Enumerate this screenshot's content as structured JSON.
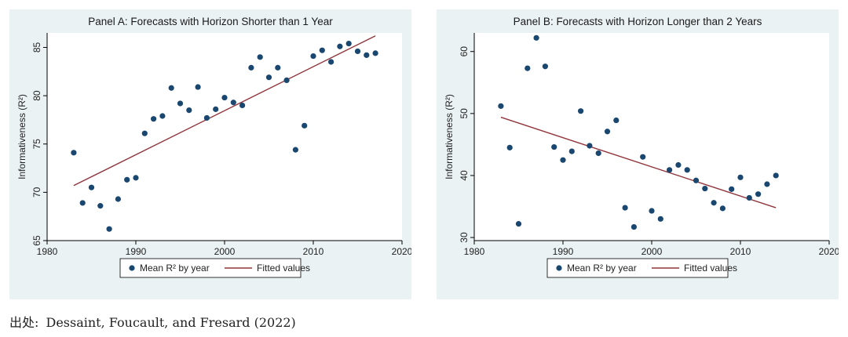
{
  "source": {
    "label": "出处:",
    "text": "Dessaint, Foucault, and Fresard (2022)"
  },
  "colors": {
    "background": "#eaf2f3",
    "points": "#1a476f",
    "line": "#90353b",
    "axis": "#000000"
  },
  "chart_data": [
    {
      "type": "scatter",
      "title": "Panel A: Forecasts with Horizon Shorter than 1 Year",
      "xlabel": "",
      "ylabel": "Informativeness (R²)",
      "xlim": [
        1980,
        2020
      ],
      "ylim": [
        65,
        86.5
      ],
      "xticks": [
        1980,
        1990,
        2000,
        2010,
        2020
      ],
      "yticks": [
        65,
        70,
        75,
        80,
        85
      ],
      "grid": false,
      "legend": {
        "position": "bottom",
        "entries": [
          "Mean R² by year",
          "Fitted values"
        ]
      },
      "series": [
        {
          "name": "Mean R² by year",
          "kind": "scatter",
          "x": [
            1983,
            1984,
            1985,
            1986,
            1987,
            1988,
            1989,
            1990,
            1991,
            1992,
            1993,
            1994,
            1995,
            1996,
            1997,
            1998,
            1999,
            2000,
            2001,
            2002,
            2003,
            2004,
            2005,
            2006,
            2007,
            2008,
            2009,
            2010,
            2011,
            2012,
            2013,
            2014,
            2015,
            2016,
            2017
          ],
          "y": [
            74.1,
            68.9,
            70.5,
            68.6,
            66.2,
            69.3,
            71.3,
            71.5,
            76.1,
            77.6,
            77.9,
            80.8,
            79.2,
            78.5,
            80.9,
            77.7,
            78.6,
            79.8,
            79.3,
            79.0,
            82.9,
            84.0,
            81.9,
            82.9,
            81.6,
            74.4,
            76.9,
            84.1,
            84.7,
            83.5,
            85.1,
            85.4,
            84.6,
            84.2,
            84.4
          ]
        },
        {
          "name": "Fitted values",
          "kind": "line",
          "x": [
            1983,
            2017
          ],
          "y": [
            70.7,
            86.2
          ]
        }
      ]
    },
    {
      "type": "scatter",
      "title": "Panel B: Forecasts with Horizon Longer than 2 Years",
      "xlabel": "",
      "ylabel": "Informativeness (R²)",
      "xlim": [
        1980,
        2020
      ],
      "ylim": [
        29.5,
        63
      ],
      "xticks": [
        1980,
        1990,
        2000,
        2010,
        2020
      ],
      "yticks": [
        30,
        40,
        50,
        60
      ],
      "grid": false,
      "legend": {
        "position": "bottom",
        "entries": [
          "Mean R² by year",
          "Fitted values"
        ]
      },
      "series": [
        {
          "name": "Mean R² by year",
          "kind": "scatter",
          "x": [
            1983,
            1984,
            1985,
            1986,
            1987,
            1988,
            1989,
            1990,
            1991,
            1992,
            1993,
            1994,
            1995,
            1996,
            1997,
            1998,
            1999,
            2000,
            2001,
            2002,
            2003,
            2004,
            2005,
            2006,
            2007,
            2008,
            2009,
            2010,
            2011,
            2012,
            2013,
            2014
          ],
          "y": [
            51.2,
            44.5,
            32.2,
            57.3,
            62.2,
            57.6,
            44.6,
            42.5,
            43.9,
            50.4,
            44.8,
            43.6,
            47.1,
            48.9,
            34.8,
            31.7,
            43.0,
            34.3,
            33.0,
            40.9,
            41.7,
            40.9,
            39.2,
            37.9,
            35.6,
            34.7,
            37.8,
            39.7,
            36.4,
            37.0,
            38.6,
            40.0
          ]
        },
        {
          "name": "Fitted values",
          "kind": "line",
          "x": [
            1983,
            2014
          ],
          "y": [
            49.4,
            34.8
          ]
        }
      ]
    }
  ]
}
